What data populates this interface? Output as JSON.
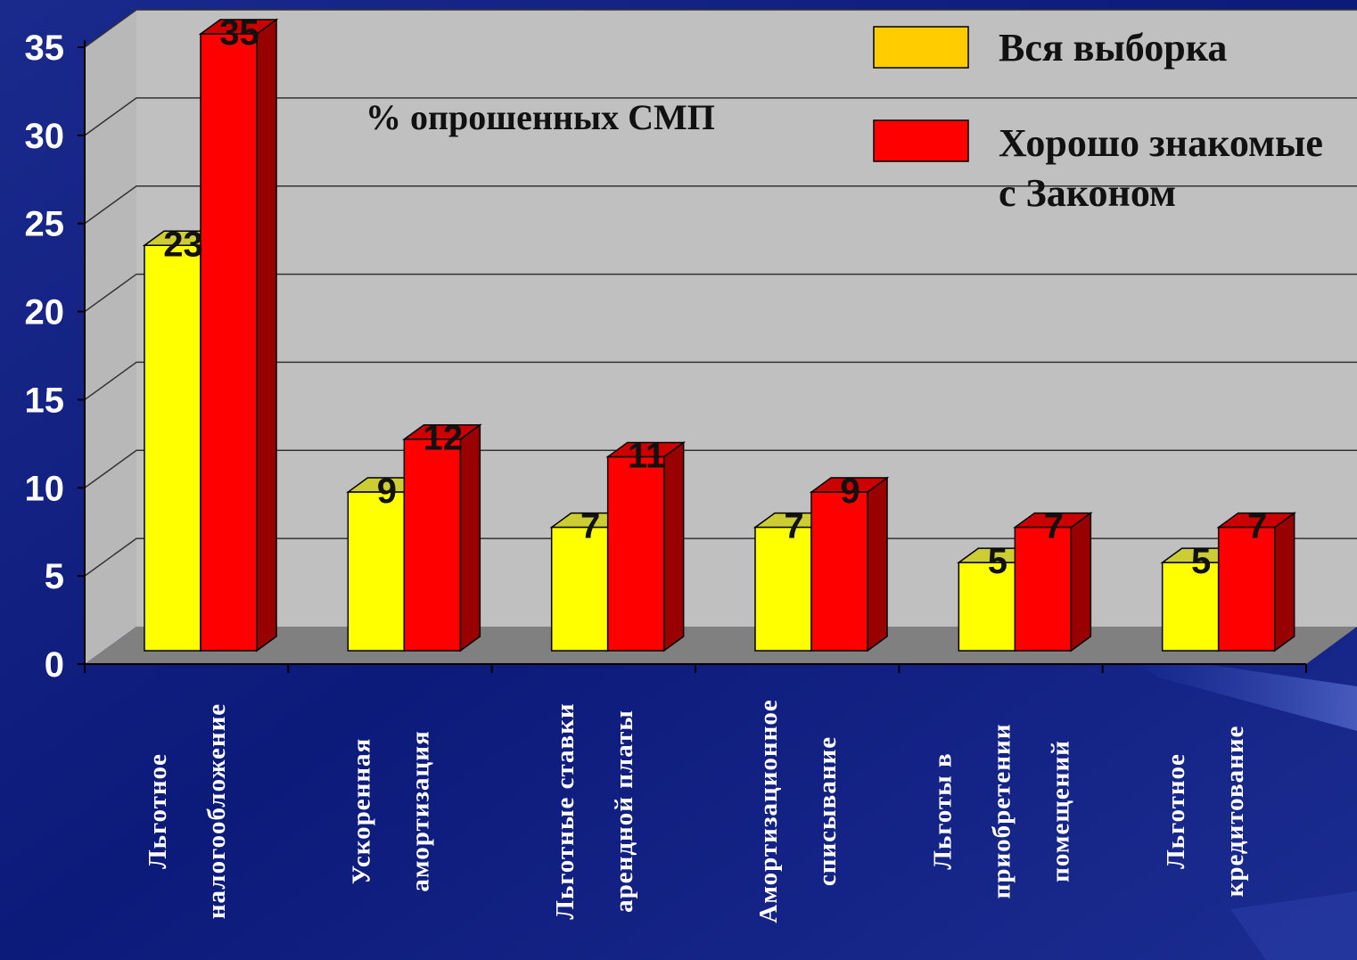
{
  "chart_data": {
    "type": "bar",
    "subtitle": "% опрошенных СМП",
    "categories": [
      [
        "Льготное",
        "налогообложение"
      ],
      [
        "Ускоренная",
        "амортизация"
      ],
      [
        "Льготные ставки",
        "арендной платы"
      ],
      [
        "Амортизационное",
        "списывание"
      ],
      [
        "Льготы в",
        "приобретении",
        "помещений"
      ],
      [
        "Льготное",
        "кредитование"
      ]
    ],
    "series": [
      {
        "name": "Вся выборка",
        "values": [
          23,
          9,
          7,
          7,
          5,
          5
        ],
        "color": "#ffff00"
      },
      {
        "name": "Хорошо знакомые с Законом",
        "values": [
          35,
          12,
          11,
          9,
          7,
          7
        ],
        "color": "#ff0000"
      }
    ],
    "legend": {
      "position": "top-right",
      "items": [
        {
          "lines": [
            "Вся выборка"
          ],
          "swatch_color": "#ffcc00"
        },
        {
          "lines": [
            "Хорошо знакомые",
            "с Законом"
          ],
          "swatch_color": "#ff0000"
        }
      ]
    },
    "ylim": [
      0,
      35
    ],
    "yticks": [
      0,
      5,
      10,
      15,
      20,
      25,
      30,
      35
    ],
    "grid": true,
    "three_d": true,
    "colors": {
      "background": "#0c1a7a",
      "wall": "#c0c0c0",
      "floor": "#808080",
      "axis_text": "#ffffff",
      "yellow_face": "#ffff00",
      "yellow_side": "#b3b300",
      "red_face": "#ff0000",
      "red_side": "#990000"
    }
  }
}
